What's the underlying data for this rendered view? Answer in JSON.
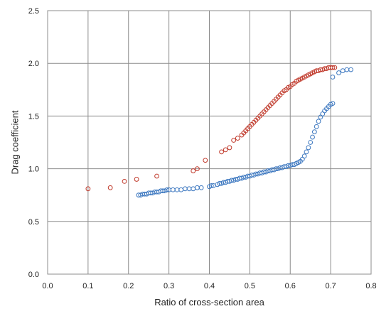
{
  "chart_data": {
    "type": "scatter",
    "title": "",
    "xlabel": "Ratio of cross-section area",
    "ylabel": "Drag coefficient",
    "xlim": [
      0.0,
      0.8
    ],
    "ylim": [
      0.0,
      2.5
    ],
    "xticks": [
      "0.0",
      "0.1",
      "0.2",
      "0.3",
      "0.4",
      "0.5",
      "0.6",
      "0.7",
      "0.8"
    ],
    "yticks": [
      "0.0",
      "0.5",
      "1.0",
      "1.5",
      "2.0",
      "2.5"
    ],
    "grid": true,
    "legend": "none",
    "marker": "open-circle",
    "series": [
      {
        "color": "#c0392b",
        "points": [
          [
            0.1,
            0.81
          ],
          [
            0.155,
            0.82
          ],
          [
            0.19,
            0.88
          ],
          [
            0.22,
            0.9
          ],
          [
            0.27,
            0.93
          ],
          [
            0.36,
            0.98
          ],
          [
            0.37,
            1.0
          ],
          [
            0.39,
            1.08
          ],
          [
            0.43,
            1.16
          ],
          [
            0.44,
            1.18
          ],
          [
            0.45,
            1.2
          ],
          [
            0.46,
            1.27
          ],
          [
            0.47,
            1.29
          ],
          [
            0.48,
            1.32
          ],
          [
            0.485,
            1.34
          ],
          [
            0.49,
            1.36
          ],
          [
            0.495,
            1.38
          ],
          [
            0.5,
            1.4
          ],
          [
            0.505,
            1.42
          ],
          [
            0.51,
            1.44
          ],
          [
            0.515,
            1.46
          ],
          [
            0.52,
            1.48
          ],
          [
            0.525,
            1.5
          ],
          [
            0.53,
            1.52
          ],
          [
            0.535,
            1.54
          ],
          [
            0.54,
            1.56
          ],
          [
            0.545,
            1.58
          ],
          [
            0.55,
            1.6
          ],
          [
            0.555,
            1.62
          ],
          [
            0.56,
            1.64
          ],
          [
            0.565,
            1.66
          ],
          [
            0.57,
            1.68
          ],
          [
            0.575,
            1.7
          ],
          [
            0.58,
            1.72
          ],
          [
            0.585,
            1.74
          ],
          [
            0.59,
            1.75
          ],
          [
            0.595,
            1.77
          ],
          [
            0.6,
            1.78
          ],
          [
            0.605,
            1.8
          ],
          [
            0.61,
            1.81
          ],
          [
            0.615,
            1.83
          ],
          [
            0.62,
            1.84
          ],
          [
            0.625,
            1.85
          ],
          [
            0.63,
            1.86
          ],
          [
            0.635,
            1.87
          ],
          [
            0.64,
            1.88
          ],
          [
            0.645,
            1.89
          ],
          [
            0.65,
            1.9
          ],
          [
            0.655,
            1.91
          ],
          [
            0.66,
            1.92
          ],
          [
            0.665,
            1.93
          ],
          [
            0.67,
            1.93
          ],
          [
            0.675,
            1.94
          ],
          [
            0.68,
            1.94
          ],
          [
            0.685,
            1.95
          ],
          [
            0.69,
            1.95
          ],
          [
            0.695,
            1.96
          ],
          [
            0.7,
            1.96
          ],
          [
            0.705,
            1.96
          ],
          [
            0.71,
            1.96
          ]
        ]
      },
      {
        "color": "#3d78c0",
        "points": [
          [
            0.225,
            0.75
          ],
          [
            0.23,
            0.75
          ],
          [
            0.235,
            0.76
          ],
          [
            0.24,
            0.76
          ],
          [
            0.245,
            0.76
          ],
          [
            0.25,
            0.77
          ],
          [
            0.255,
            0.77
          ],
          [
            0.26,
            0.77
          ],
          [
            0.265,
            0.78
          ],
          [
            0.27,
            0.78
          ],
          [
            0.275,
            0.78
          ],
          [
            0.28,
            0.79
          ],
          [
            0.285,
            0.79
          ],
          [
            0.29,
            0.79
          ],
          [
            0.295,
            0.8
          ],
          [
            0.3,
            0.8
          ],
          [
            0.31,
            0.8
          ],
          [
            0.32,
            0.8
          ],
          [
            0.33,
            0.8
          ],
          [
            0.34,
            0.81
          ],
          [
            0.35,
            0.81
          ],
          [
            0.36,
            0.81
          ],
          [
            0.37,
            0.82
          ],
          [
            0.38,
            0.82
          ],
          [
            0.4,
            0.83
          ],
          [
            0.405,
            0.84
          ],
          [
            0.41,
            0.84
          ],
          [
            0.42,
            0.85
          ],
          [
            0.425,
            0.86
          ],
          [
            0.43,
            0.86
          ],
          [
            0.435,
            0.87
          ],
          [
            0.44,
            0.87
          ],
          [
            0.445,
            0.88
          ],
          [
            0.45,
            0.88
          ],
          [
            0.455,
            0.89
          ],
          [
            0.46,
            0.89
          ],
          [
            0.465,
            0.9
          ],
          [
            0.47,
            0.9
          ],
          [
            0.475,
            0.91
          ],
          [
            0.48,
            0.91
          ],
          [
            0.485,
            0.92
          ],
          [
            0.49,
            0.92
          ],
          [
            0.495,
            0.93
          ],
          [
            0.5,
            0.93
          ],
          [
            0.505,
            0.94
          ],
          [
            0.51,
            0.94
          ],
          [
            0.515,
            0.95
          ],
          [
            0.52,
            0.95
          ],
          [
            0.525,
            0.96
          ],
          [
            0.53,
            0.96
          ],
          [
            0.535,
            0.97
          ],
          [
            0.54,
            0.97
          ],
          [
            0.545,
            0.98
          ],
          [
            0.55,
            0.98
          ],
          [
            0.555,
            0.99
          ],
          [
            0.56,
            0.99
          ],
          [
            0.565,
            1.0
          ],
          [
            0.57,
            1.0
          ],
          [
            0.575,
            1.01
          ],
          [
            0.58,
            1.01
          ],
          [
            0.585,
            1.02
          ],
          [
            0.59,
            1.02
          ],
          [
            0.595,
            1.03
          ],
          [
            0.6,
            1.03
          ],
          [
            0.605,
            1.04
          ],
          [
            0.61,
            1.04
          ],
          [
            0.615,
            1.05
          ],
          [
            0.62,
            1.06
          ],
          [
            0.625,
            1.07
          ],
          [
            0.63,
            1.09
          ],
          [
            0.635,
            1.12
          ],
          [
            0.64,
            1.16
          ],
          [
            0.645,
            1.2
          ],
          [
            0.65,
            1.25
          ],
          [
            0.655,
            1.3
          ],
          [
            0.66,
            1.35
          ],
          [
            0.665,
            1.4
          ],
          [
            0.67,
            1.45
          ],
          [
            0.675,
            1.49
          ],
          [
            0.68,
            1.52
          ],
          [
            0.685,
            1.55
          ],
          [
            0.69,
            1.57
          ],
          [
            0.695,
            1.59
          ],
          [
            0.7,
            1.61
          ],
          [
            0.705,
            1.62
          ],
          [
            0.705,
            1.87
          ],
          [
            0.72,
            1.91
          ],
          [
            0.73,
            1.93
          ],
          [
            0.74,
            1.94
          ],
          [
            0.75,
            1.94
          ]
        ]
      }
    ]
  }
}
